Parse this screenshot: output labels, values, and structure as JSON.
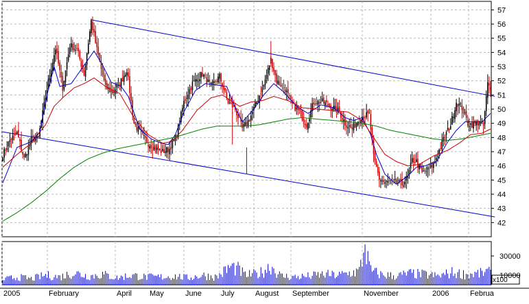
{
  "chart_data": [
    {
      "type": "candlestick",
      "ylim": [
        41,
        57.6
      ],
      "y_ticks": [
        42,
        43,
        44,
        45,
        46,
        47,
        48,
        49,
        50,
        51,
        52,
        53,
        54,
        55,
        56,
        57
      ],
      "x_labels": [
        "2005",
        "February",
        "April",
        "May",
        "June",
        "July",
        "August",
        "September",
        "November",
        "2006",
        "Februa"
      ],
      "grid": true,
      "colors": {
        "up": "#000000",
        "down": "#cc0000",
        "ma_short": "#0000cc",
        "ma_mid": "#cc0000",
        "ma_long": "#008000",
        "channel": "#0000cc"
      },
      "price_key": [
        [
          0,
          46.8
        ],
        [
          5,
          47.8
        ],
        [
          10,
          48.3
        ],
        [
          15,
          46.5
        ],
        [
          20,
          47.8
        ],
        [
          25,
          48.0
        ],
        [
          32,
          52.0
        ],
        [
          37,
          54.3
        ],
        [
          42,
          51.5
        ],
        [
          47,
          54.5
        ],
        [
          52,
          54.2
        ],
        [
          57,
          52.5
        ],
        [
          62,
          56.2
        ],
        [
          66,
          54.2
        ],
        [
          72,
          51.5
        ],
        [
          77,
          51.2
        ],
        [
          82,
          51.8
        ],
        [
          87,
          52.8
        ],
        [
          92,
          49.0
        ],
        [
          97,
          48.2
        ],
        [
          102,
          47.6
        ],
        [
          107,
          47.2
        ],
        [
          112,
          47.0
        ],
        [
          117,
          47.2
        ],
        [
          122,
          48.2
        ],
        [
          127,
          50.5
        ],
        [
          133,
          51.8
        ],
        [
          140,
          52.5
        ],
        [
          146,
          51.6
        ],
        [
          152,
          52.3
        ],
        [
          158,
          50.5
        ],
        [
          163,
          50.0
        ],
        [
          168,
          48.6
        ],
        [
          173,
          49.3
        ],
        [
          178,
          50.5
        ],
        [
          183,
          51.7
        ],
        [
          188,
          53.5
        ],
        [
          192,
          52.0
        ],
        [
          198,
          51.4
        ],
        [
          203,
          50.3
        ],
        [
          208,
          49.8
        ],
        [
          213,
          48.9
        ],
        [
          218,
          50.5
        ],
        [
          224,
          50.5
        ],
        [
          230,
          50.2
        ],
        [
          236,
          49.8
        ],
        [
          240,
          49.0
        ],
        [
          245,
          48.6
        ],
        [
          251,
          49.5
        ],
        [
          257,
          49.6
        ],
        [
          260,
          46.6
        ],
        [
          264,
          45.1
        ],
        [
          268,
          44.8
        ],
        [
          272,
          44.9
        ],
        [
          276,
          44.8
        ],
        [
          280,
          44.7
        ],
        [
          284,
          45.2
        ],
        [
          287,
          46.4
        ],
        [
          290,
          46.3
        ],
        [
          294,
          45.5
        ],
        [
          298,
          45.7
        ],
        [
          302,
          46.1
        ],
        [
          306,
          47.1
        ],
        [
          310,
          48.1
        ],
        [
          314,
          48.9
        ],
        [
          318,
          50.5
        ],
        [
          322,
          50.1
        ],
        [
          326,
          49.0
        ],
        [
          330,
          48.9
        ],
        [
          334,
          49.1
        ],
        [
          337,
          48.8
        ],
        [
          340,
          51.8
        ],
        [
          342,
          51.3
        ]
      ],
      "moving_averages": [
        {
          "period": "short",
          "color": "#0000cc",
          "values": [
            [
              0,
              44.8
            ],
            [
              10,
              47.3
            ],
            [
              20,
              47.7
            ],
            [
              26,
              48.4
            ],
            [
              31,
              51.0
            ],
            [
              36,
              53.0
            ],
            [
              40,
              51.6
            ],
            [
              48,
              51.8
            ],
            [
              55,
              52.8
            ],
            [
              64,
              54.1
            ],
            [
              70,
              53.1
            ],
            [
              76,
              51.9
            ],
            [
              83,
              51.6
            ],
            [
              88,
              50.9
            ],
            [
              96,
              48.6
            ],
            [
              104,
              47.9
            ],
            [
              111,
              47.6
            ],
            [
              116,
              47.5
            ],
            [
              121,
              48.2
            ],
            [
              127,
              49.8
            ],
            [
              135,
              51.3
            ],
            [
              142,
              51.8
            ],
            [
              150,
              51.7
            ],
            [
              157,
              51.6
            ],
            [
              163,
              50.1
            ],
            [
              168,
              49.1
            ],
            [
              176,
              50.0
            ],
            [
              183,
              51.0
            ],
            [
              190,
              51.8
            ],
            [
              197,
              51.2
            ],
            [
              206,
              50.2
            ],
            [
              214,
              49.7
            ],
            [
              223,
              50.3
            ],
            [
              232,
              50.1
            ],
            [
              240,
              49.4
            ],
            [
              246,
              49.2
            ],
            [
              252,
              49.4
            ],
            [
              258,
              48.2
            ],
            [
              262,
              46.8
            ],
            [
              268,
              45.4
            ],
            [
              276,
              44.7
            ],
            [
              284,
              45.3
            ],
            [
              290,
              45.9
            ],
            [
              296,
              46.0
            ],
            [
              304,
              46.3
            ],
            [
              312,
              47.7
            ],
            [
              318,
              48.5
            ],
            [
              324,
              49.1
            ],
            [
              330,
              49.1
            ],
            [
              336,
              49.1
            ],
            [
              342,
              49.7
            ]
          ]
        },
        {
          "period": "medium",
          "color": "#cc0000",
          "values": [
            [
              0,
              45.9
            ],
            [
              10,
              46.8
            ],
            [
              20,
              47.6
            ],
            [
              30,
              48.9
            ],
            [
              36,
              50.2
            ],
            [
              42,
              50.8
            ],
            [
              50,
              51.5
            ],
            [
              57,
              51.8
            ],
            [
              64,
              52.2
            ],
            [
              72,
              51.6
            ],
            [
              82,
              51.1
            ],
            [
              92,
              49.4
            ],
            [
              102,
              48.2
            ],
            [
              112,
              47.6
            ],
            [
              118,
              47.7
            ],
            [
              126,
              48.5
            ],
            [
              136,
              49.9
            ],
            [
              146,
              50.8
            ],
            [
              154,
              51.0
            ],
            [
              160,
              50.6
            ],
            [
              166,
              50.2
            ],
            [
              174,
              50.5
            ],
            [
              182,
              50.6
            ],
            [
              190,
              50.9
            ],
            [
              200,
              50.6
            ],
            [
              210,
              50.1
            ],
            [
              220,
              50.0
            ],
            [
              232,
              49.9
            ],
            [
              242,
              49.8
            ],
            [
              252,
              49.2
            ],
            [
              260,
              48.0
            ],
            [
              268,
              46.8
            ],
            [
              276,
              46.3
            ],
            [
              284,
              46.0
            ],
            [
              292,
              46.1
            ],
            [
              302,
              46.7
            ],
            [
              312,
              47.1
            ],
            [
              320,
              47.6
            ],
            [
              328,
              48.2
            ],
            [
              336,
              48.3
            ],
            [
              342,
              48.6
            ]
          ]
        },
        {
          "period": "long",
          "color": "#008000",
          "values": [
            [
              0,
              42.1
            ],
            [
              10,
              42.7
            ],
            [
              20,
              43.4
            ],
            [
              30,
              44.2
            ],
            [
              40,
              45.1
            ],
            [
              50,
              45.9
            ],
            [
              60,
              46.5
            ],
            [
              70,
              46.9
            ],
            [
              80,
              47.2
            ],
            [
              90,
              47.4
            ],
            [
              100,
              47.6
            ],
            [
              110,
              47.8
            ],
            [
              120,
              48.0
            ],
            [
              130,
              48.3
            ],
            [
              140,
              48.6
            ],
            [
              150,
              48.8
            ],
            [
              160,
              48.8
            ],
            [
              170,
              48.8
            ],
            [
              180,
              48.9
            ],
            [
              190,
              49.1
            ],
            [
              200,
              49.3
            ],
            [
              210,
              49.4
            ],
            [
              220,
              49.3
            ],
            [
              232,
              49.2
            ],
            [
              244,
              49.1
            ],
            [
              252,
              49.0
            ],
            [
              262,
              48.8
            ],
            [
              272,
              48.5
            ],
            [
              282,
              48.3
            ],
            [
              292,
              48.1
            ],
            [
              302,
              47.9
            ],
            [
              312,
              47.8
            ],
            [
              322,
              47.9
            ],
            [
              332,
              48.1
            ],
            [
              342,
              48.3
            ]
          ]
        }
      ],
      "trend_channel": {
        "color": "#0000cc",
        "upper": [
          [
            62,
            56.3
          ],
          [
            345,
            50.9
          ]
        ],
        "lower": [
          [
            0,
            48.4
          ],
          [
            345,
            42.4
          ]
        ]
      }
    },
    {
      "type": "bar",
      "ylabel_multiplier": "x100",
      "y_ticks": [
        10000,
        30000
      ],
      "ylim": [
        0,
        45000
      ],
      "bar_color": "#0000cc",
      "volume_key": [
        [
          0,
          6000
        ],
        [
          10,
          9000
        ],
        [
          20,
          7000
        ],
        [
          30,
          11000
        ],
        [
          40,
          9000
        ],
        [
          50,
          14000
        ],
        [
          60,
          10000
        ],
        [
          70,
          12000
        ],
        [
          80,
          8000
        ],
        [
          90,
          11000
        ],
        [
          100,
          9000
        ],
        [
          110,
          9000
        ],
        [
          120,
          10000
        ],
        [
          130,
          8000
        ],
        [
          140,
          11000
        ],
        [
          150,
          9000
        ],
        [
          160,
          21000
        ],
        [
          165,
          18000
        ],
        [
          170,
          11000
        ],
        [
          180,
          13000
        ],
        [
          188,
          22000
        ],
        [
          195,
          10000
        ],
        [
          205,
          9000
        ],
        [
          215,
          10000
        ],
        [
          225,
          12000
        ],
        [
          235,
          11000
        ],
        [
          245,
          14000
        ],
        [
          250,
          16000
        ],
        [
          254,
          42000
        ],
        [
          258,
          16000
        ],
        [
          265,
          12000
        ],
        [
          275,
          10000
        ],
        [
          285,
          13000
        ],
        [
          295,
          12000
        ],
        [
          305,
          10000
        ],
        [
          315,
          14000
        ],
        [
          325,
          12000
        ],
        [
          335,
          13000
        ],
        [
          340,
          15000
        ],
        [
          342,
          13000
        ]
      ]
    }
  ]
}
